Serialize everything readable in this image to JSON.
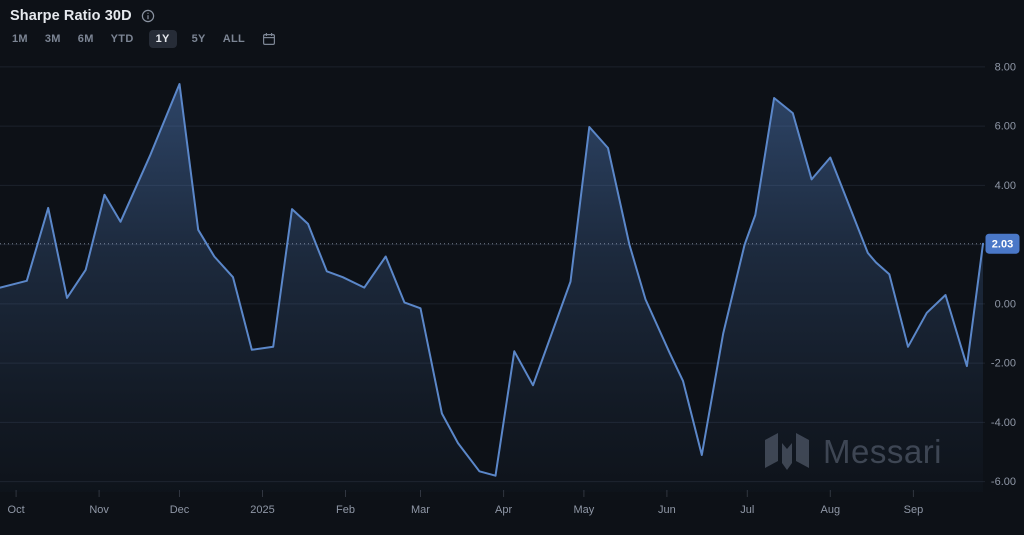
{
  "header": {
    "title": "Sharpe Ratio 30D"
  },
  "toolbar": {
    "ranges": [
      "1M",
      "3M",
      "6M",
      "YTD",
      "1Y",
      "5Y",
      "ALL"
    ],
    "selected": "1Y"
  },
  "watermark": {
    "text": "Messari"
  },
  "chart_data": {
    "type": "area",
    "title": "Sharpe Ratio 30D",
    "series_name": "Sharpe Ratio 30D",
    "grid": "horizontal",
    "legend": "none",
    "xlim": [
      "2024-09-25",
      "2025-09-27"
    ],
    "ylim": [
      -6.35,
      8.4
    ],
    "y_ticks": [
      {
        "v": 8,
        "label": "8.00"
      },
      {
        "v": 6,
        "label": "6.00"
      },
      {
        "v": 4,
        "label": "4.00"
      },
      {
        "v": 2,
        "label": "2.00"
      },
      {
        "v": 0,
        "label": "0.00"
      },
      {
        "v": -2,
        "label": "-2.00"
      },
      {
        "v": -4,
        "label": "-4.00"
      },
      {
        "v": -6,
        "label": "-6.00"
      }
    ],
    "x_ticks": [
      {
        "date": "2024-10-01",
        "label": "Oct"
      },
      {
        "date": "2024-11-01",
        "label": "Nov"
      },
      {
        "date": "2024-12-01",
        "label": "Dec"
      },
      {
        "date": "2025-01-01",
        "label": "2025"
      },
      {
        "date": "2025-02-01",
        "label": "Feb"
      },
      {
        "date": "2025-03-01",
        "label": "Mar"
      },
      {
        "date": "2025-04-01",
        "label": "Apr"
      },
      {
        "date": "2025-05-01",
        "label": "May"
      },
      {
        "date": "2025-06-01",
        "label": "Jun"
      },
      {
        "date": "2025-07-01",
        "label": "Jul"
      },
      {
        "date": "2025-08-01",
        "label": "Aug"
      },
      {
        "date": "2025-09-01",
        "label": "Sep"
      }
    ],
    "points": [
      [
        "2024-09-25",
        0.55
      ],
      [
        "2024-10-05",
        0.78
      ],
      [
        "2024-10-13",
        3.24
      ],
      [
        "2024-10-20",
        0.2
      ],
      [
        "2024-10-27",
        1.15
      ],
      [
        "2024-11-03",
        3.68
      ],
      [
        "2024-11-09",
        2.77
      ],
      [
        "2024-11-20",
        5.0
      ],
      [
        "2024-12-01",
        7.42
      ],
      [
        "2024-12-08",
        2.5
      ],
      [
        "2024-12-14",
        1.6
      ],
      [
        "2024-12-21",
        0.9
      ],
      [
        "2024-12-28",
        -1.55
      ],
      [
        "2025-01-05",
        -1.45
      ],
      [
        "2025-01-12",
        3.2
      ],
      [
        "2025-01-18",
        2.7
      ],
      [
        "2025-01-25",
        1.1
      ],
      [
        "2025-01-31",
        0.9
      ],
      [
        "2025-02-08",
        0.55
      ],
      [
        "2025-02-16",
        1.6
      ],
      [
        "2025-02-23",
        0.05
      ],
      [
        "2025-03-01",
        -0.15
      ],
      [
        "2025-03-09",
        -3.7
      ],
      [
        "2025-03-15",
        -4.7
      ],
      [
        "2025-03-23",
        -5.65
      ],
      [
        "2025-03-29",
        -5.8
      ],
      [
        "2025-04-05",
        -1.6
      ],
      [
        "2025-04-12",
        -2.75
      ],
      [
        "2025-04-26",
        0.75
      ],
      [
        "2025-05-03",
        5.97
      ],
      [
        "2025-05-10",
        5.26
      ],
      [
        "2025-05-18",
        2.0
      ],
      [
        "2025-05-24",
        0.15
      ],
      [
        "2025-06-02",
        -1.65
      ],
      [
        "2025-06-07",
        -2.6
      ],
      [
        "2025-06-14",
        -5.1
      ],
      [
        "2025-06-22",
        -1.0
      ],
      [
        "2025-06-30",
        2.0
      ],
      [
        "2025-07-04",
        3.0
      ],
      [
        "2025-07-11",
        6.95
      ],
      [
        "2025-07-18",
        6.44
      ],
      [
        "2025-07-25",
        4.2
      ],
      [
        "2025-08-01",
        4.94
      ],
      [
        "2025-08-15",
        1.72
      ],
      [
        "2025-08-18",
        1.4
      ],
      [
        "2025-08-23",
        1.0
      ],
      [
        "2025-08-30",
        -1.45
      ],
      [
        "2025-09-06",
        -0.3
      ],
      [
        "2025-09-13",
        0.3
      ],
      [
        "2025-09-21",
        -2.1
      ],
      [
        "2025-09-27",
        2.03
      ]
    ],
    "last_value": 2.03,
    "last_label": "2.03"
  },
  "colors": {
    "background": "#0d1117",
    "line": "#5b87c9",
    "area_top": "#5482c6",
    "grid": "#1d222c",
    "dotted_line": "#9fadc4",
    "badge_bg": "#4a78c8",
    "badge_text": "#ffffff",
    "axis_text": "#8f97a6",
    "title_text": "#e6e9ee",
    "button_text": "#7c8594",
    "button_active_bg": "#262c37",
    "button_active_text": "#e6e9ee",
    "watermark": "#3d434e"
  }
}
